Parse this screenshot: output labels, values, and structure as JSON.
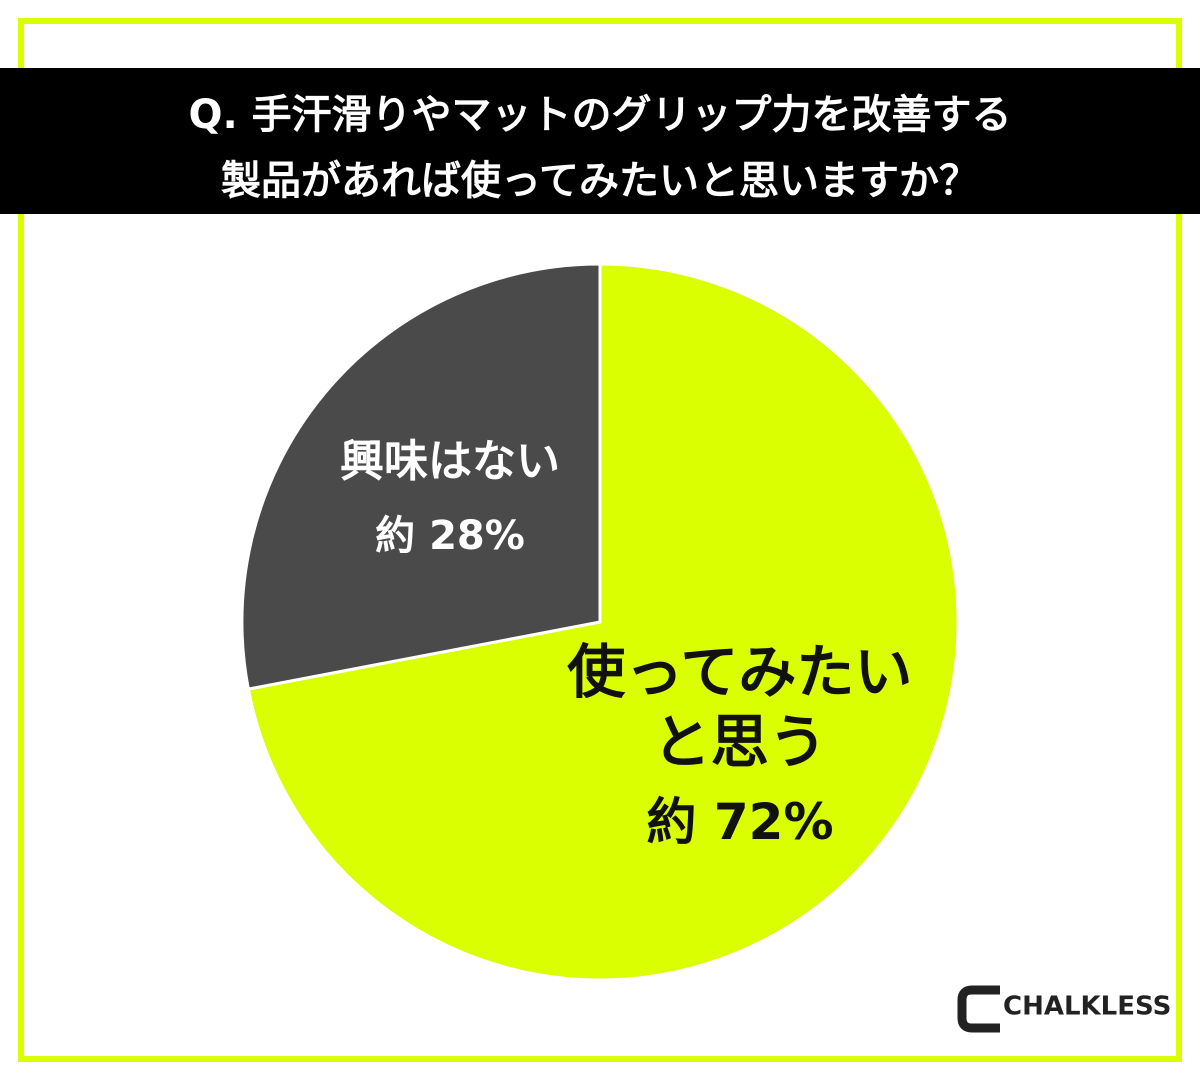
{
  "chart_data": {
    "type": "pie",
    "title": [
      "Q. 手汗滑りやマットのグリップ力を改善する",
      "製品があれば使ってみたいと思いますか？"
    ],
    "categories": [
      "使ってみたいと思う",
      "興味はない"
    ],
    "values": [
      72,
      28
    ],
    "value_labels": [
      "約 72%",
      "約 28%"
    ],
    "colors": [
      "#d9ff00",
      "#4a4a4a"
    ]
  },
  "logo": "CHALKLESS"
}
